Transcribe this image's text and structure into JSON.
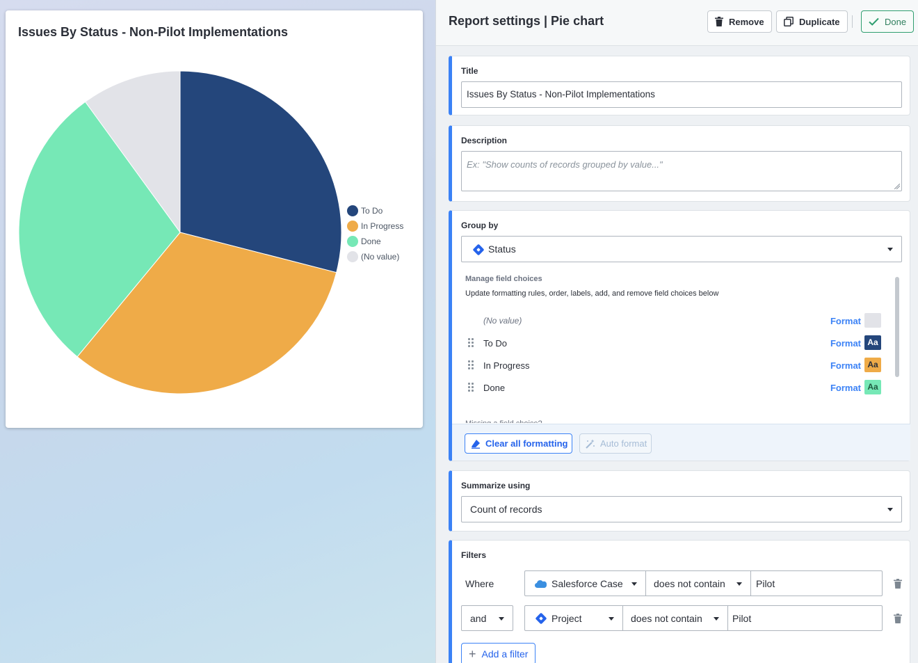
{
  "chart_card": {
    "title": "Issues By Status - Non-Pilot Implementations"
  },
  "chart_data": {
    "type": "pie",
    "title": "Issues By Status - Non-Pilot Implementations",
    "categories": [
      "To Do",
      "In Progress",
      "Done",
      "(No value)"
    ],
    "values": [
      29,
      32,
      29,
      10
    ],
    "colors": [
      "#24467b",
      "#efab48",
      "#76e8b6",
      "#e2e3e8"
    ],
    "legend_position": "right"
  },
  "panel": {
    "title": "Report settings | Pie chart",
    "remove_label": "Remove",
    "duplicate_label": "Duplicate",
    "done_label": "Done"
  },
  "title_section": {
    "label": "Title",
    "value": "Issues By Status - Non-Pilot Implementations"
  },
  "description_section": {
    "label": "Description",
    "placeholder": "Ex: \"Show counts of records grouped by value...\""
  },
  "group_by": {
    "label": "Group by",
    "selected": "Status",
    "icon": "jira-diamond-icon",
    "manage_label": "Manage field choices",
    "manage_desc": "Update formatting rules, order, labels, add, and remove field choices below",
    "format_label": "Format",
    "swatch_text": "Aa",
    "choices": [
      {
        "name": "(No value)",
        "bg": "#e2e3e8",
        "fg": "#e2e3e8"
      },
      {
        "name": "To Do",
        "bg": "#24467b",
        "fg": "#ffffff"
      },
      {
        "name": "In Progress",
        "bg": "#efab48",
        "fg": "#2b2f38"
      },
      {
        "name": "Done",
        "bg": "#76e8b6",
        "fg": "#1f5a40"
      }
    ],
    "cut_text": "Missing a field choice?",
    "clear_label": "Clear all formatting",
    "auto_label": "Auto format"
  },
  "summarize": {
    "label": "Summarize using",
    "selected": "Count of records"
  },
  "filters": {
    "label": "Filters",
    "add_label": "Add a filter",
    "rows": [
      {
        "conjunction": "Where",
        "field": "Salesforce Case",
        "field_icon": "salesforce-cloud-icon",
        "operator": "does not contain",
        "value": "Pilot"
      },
      {
        "conjunction": "and",
        "field": "Project",
        "field_icon": "jira-diamond-icon",
        "operator": "does not contain",
        "value": "Pilot"
      }
    ]
  }
}
